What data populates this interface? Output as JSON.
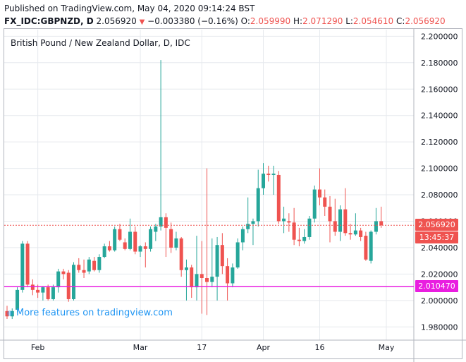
{
  "header": {
    "published": "Published on TradingView.com, May 04, 2020 09:14:24 BST",
    "symbol": "FX_IDC:GBPNZD, D",
    "price": "2.056920",
    "change": "−0.003380 (−0.16%)",
    "o_label": "O:",
    "o_value": "2.059990",
    "h_label": "H:",
    "h_value": "2.071290",
    "l_label": "L:",
    "l_value": "2.054610",
    "c_label": "C:",
    "c_value": "2.056920"
  },
  "watermark": "More features on tradingview.com",
  "price_tags": {
    "last_price": "2.056920",
    "countdown": "13:45:37",
    "horizontal_line": "2.010470"
  },
  "colors": {
    "up": "#26a69a",
    "down": "#ef5350",
    "hline": "#e91ee0",
    "grid": "#e6e9ee",
    "axis_text": "#131722",
    "last_price_line": "#ef5350"
  },
  "chart_data": {
    "type": "candlestick",
    "title": "British Pound / New Zealand Dollar, D, IDC",
    "ylim": [
      1.97,
      2.205
    ],
    "y_ticks": [
      "2.200000",
      "2.180000",
      "2.160000",
      "2.140000",
      "2.120000",
      "2.100000",
      "2.080000",
      "2.060000",
      "2.040000",
      "2.020000",
      "2.000000",
      "1.980000"
    ],
    "y_tick_values": [
      2.2,
      2.18,
      2.16,
      2.14,
      2.12,
      2.1,
      2.08,
      2.06,
      2.04,
      2.02,
      2.0,
      1.98
    ],
    "x_ticks": [
      {
        "label": "Feb",
        "index": 6
      },
      {
        "label": "Mar",
        "index": 26
      },
      {
        "label": "17",
        "index": 38
      },
      {
        "label": "Apr",
        "index": 50
      },
      {
        "label": "16",
        "index": 61
      },
      {
        "label": "May",
        "index": 74
      }
    ],
    "horizontal_line": 2.01047,
    "last_price": 2.05692,
    "grid": true,
    "candles": [
      {
        "o": 1.992,
        "h": 1.996,
        "l": 1.986,
        "c": 1.988
      },
      {
        "o": 1.988,
        "h": 1.994,
        "l": 1.986,
        "c": 1.992
      },
      {
        "o": 1.993,
        "h": 2.01,
        "l": 1.991,
        "c": 2.008
      },
      {
        "o": 2.008,
        "h": 2.045,
        "l": 2.006,
        "c": 2.043
      },
      {
        "o": 2.043,
        "h": 2.045,
        "l": 2.01,
        "c": 2.012
      },
      {
        "o": 2.012,
        "h": 2.016,
        "l": 2.004,
        "c": 2.008
      },
      {
        "o": 2.008,
        "h": 2.012,
        "l": 2.002,
        "c": 2.006
      },
      {
        "o": 2.006,
        "h": 2.011,
        "l": 2.0,
        "c": 2.01
      },
      {
        "o": 2.01,
        "h": 2.012,
        "l": 2.0,
        "c": 2.001
      },
      {
        "o": 2.001,
        "h": 2.012,
        "l": 2.0,
        "c": 2.01
      },
      {
        "o": 2.01,
        "h": 2.024,
        "l": 2.006,
        "c": 2.022
      },
      {
        "o": 2.022,
        "h": 2.024,
        "l": 2.016,
        "c": 2.02
      },
      {
        "o": 2.021,
        "h": 2.023,
        "l": 1.999,
        "c": 2.001
      },
      {
        "o": 2.001,
        "h": 2.029,
        "l": 2.0,
        "c": 2.027
      },
      {
        "o": 2.027,
        "h": 2.032,
        "l": 2.021,
        "c": 2.023
      },
      {
        "o": 2.023,
        "h": 2.031,
        "l": 2.017,
        "c": 2.021
      },
      {
        "o": 2.022,
        "h": 2.033,
        "l": 2.02,
        "c": 2.031
      },
      {
        "o": 2.03,
        "h": 2.033,
        "l": 2.022,
        "c": 2.023
      },
      {
        "o": 2.023,
        "h": 2.035,
        "l": 2.021,
        "c": 2.033
      },
      {
        "o": 2.033,
        "h": 2.043,
        "l": 2.032,
        "c": 2.041
      },
      {
        "o": 2.041,
        "h": 2.045,
        "l": 2.037,
        "c": 2.038
      },
      {
        "o": 2.038,
        "h": 2.056,
        "l": 2.037,
        "c": 2.054
      },
      {
        "o": 2.054,
        "h": 2.058,
        "l": 2.045,
        "c": 2.046
      },
      {
        "o": 2.044,
        "h": 2.047,
        "l": 2.038,
        "c": 2.039
      },
      {
        "o": 2.039,
        "h": 2.062,
        "l": 2.038,
        "c": 2.052
      },
      {
        "o": 2.052,
        "h": 2.056,
        "l": 2.035,
        "c": 2.037
      },
      {
        "o": 2.037,
        "h": 2.042,
        "l": 2.033,
        "c": 2.041
      },
      {
        "o": 2.041,
        "h": 2.044,
        "l": 2.025,
        "c": 2.039
      },
      {
        "o": 2.039,
        "h": 2.056,
        "l": 2.037,
        "c": 2.054
      },
      {
        "o": 2.052,
        "h": 2.058,
        "l": 2.045,
        "c": 2.056
      },
      {
        "o": 2.056,
        "h": 2.182,
        "l": 2.053,
        "c": 2.063
      },
      {
        "o": 2.063,
        "h": 2.066,
        "l": 2.033,
        "c": 2.055
      },
      {
        "o": 2.054,
        "h": 2.059,
        "l": 2.036,
        "c": 2.04
      },
      {
        "o": 2.04,
        "h": 2.052,
        "l": 2.038,
        "c": 2.047
      },
      {
        "o": 2.047,
        "h": 2.048,
        "l": 2.018,
        "c": 2.023
      },
      {
        "o": 2.023,
        "h": 2.031,
        "l": 2.0,
        "c": 2.025
      },
      {
        "o": 2.025,
        "h": 2.027,
        "l": 2.002,
        "c": 2.01
      },
      {
        "o": 2.01,
        "h": 2.049,
        "l": 2.0,
        "c": 2.02
      },
      {
        "o": 2.02,
        "h": 2.045,
        "l": 1.99,
        "c": 2.017
      },
      {
        "o": 2.017,
        "h": 2.1,
        "l": 1.989,
        "c": 2.014
      },
      {
        "o": 2.014,
        "h": 2.047,
        "l": 2.01,
        "c": 2.018
      },
      {
        "o": 2.018,
        "h": 2.048,
        "l": 2.0,
        "c": 2.042
      },
      {
        "o": 2.042,
        "h": 2.051,
        "l": 2.02,
        "c": 2.026
      },
      {
        "o": 2.026,
        "h": 2.032,
        "l": 2.0,
        "c": 2.013
      },
      {
        "o": 2.013,
        "h": 2.028,
        "l": 2.01,
        "c": 2.025
      },
      {
        "o": 2.025,
        "h": 2.047,
        "l": 2.024,
        "c": 2.044
      },
      {
        "o": 2.044,
        "h": 2.056,
        "l": 2.038,
        "c": 2.054
      },
      {
        "o": 2.054,
        "h": 2.078,
        "l": 2.051,
        "c": 2.058
      },
      {
        "o": 2.058,
        "h": 2.062,
        "l": 2.042,
        "c": 2.06
      },
      {
        "o": 2.06,
        "h": 2.099,
        "l": 2.056,
        "c": 2.085
      },
      {
        "o": 2.085,
        "h": 2.104,
        "l": 2.08,
        "c": 2.096
      },
      {
        "o": 2.096,
        "h": 2.102,
        "l": 2.09,
        "c": 2.095
      },
      {
        "o": 2.095,
        "h": 2.102,
        "l": 2.08,
        "c": 2.096
      },
      {
        "o": 2.095,
        "h": 2.098,
        "l": 2.058,
        "c": 2.06
      },
      {
        "o": 2.06,
        "h": 2.071,
        "l": 2.051,
        "c": 2.062
      },
      {
        "o": 2.06,
        "h": 2.066,
        "l": 2.052,
        "c": 2.059
      },
      {
        "o": 2.059,
        "h": 2.07,
        "l": 2.042,
        "c": 2.046
      },
      {
        "o": 2.046,
        "h": 2.055,
        "l": 2.041,
        "c": 2.045
      },
      {
        "o": 2.045,
        "h": 2.054,
        "l": 2.043,
        "c": 2.048
      },
      {
        "o": 2.048,
        "h": 2.064,
        "l": 2.046,
        "c": 2.062
      },
      {
        "o": 2.062,
        "h": 2.087,
        "l": 2.059,
        "c": 2.084
      },
      {
        "o": 2.084,
        "h": 2.1,
        "l": 2.072,
        "c": 2.078
      },
      {
        "o": 2.078,
        "h": 2.084,
        "l": 2.064,
        "c": 2.071
      },
      {
        "o": 2.071,
        "h": 2.079,
        "l": 2.044,
        "c": 2.06
      },
      {
        "o": 2.06,
        "h": 2.077,
        "l": 2.049,
        "c": 2.052
      },
      {
        "o": 2.052,
        "h": 2.072,
        "l": 2.045,
        "c": 2.069
      },
      {
        "o": 2.069,
        "h": 2.085,
        "l": 2.049,
        "c": 2.051
      },
      {
        "o": 2.051,
        "h": 2.058,
        "l": 2.046,
        "c": 2.05
      },
      {
        "o": 2.05,
        "h": 2.066,
        "l": 2.049,
        "c": 2.053
      },
      {
        "o": 2.053,
        "h": 2.055,
        "l": 2.045,
        "c": 2.048
      },
      {
        "o": 2.049,
        "h": 2.052,
        "l": 2.03,
        "c": 2.031
      },
      {
        "o": 2.03,
        "h": 2.053,
        "l": 2.028,
        "c": 2.052
      },
      {
        "o": 2.052,
        "h": 2.07,
        "l": 2.05,
        "c": 2.06
      },
      {
        "o": 2.06,
        "h": 2.071,
        "l": 2.055,
        "c": 2.0569
      }
    ]
  }
}
